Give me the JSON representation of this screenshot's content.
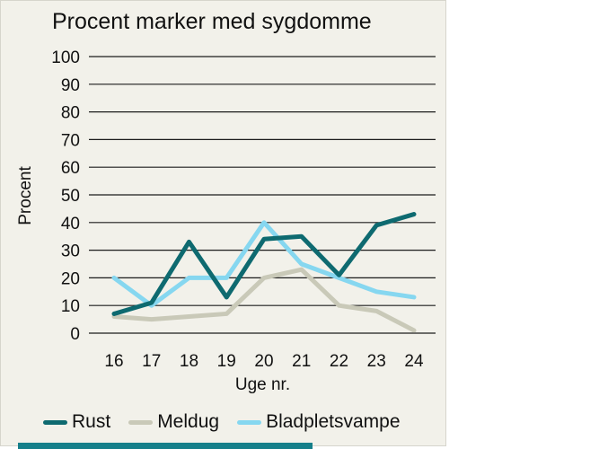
{
  "colors": {
    "panel_background": "#f2f1ea",
    "grid": "#1c1c1c",
    "accent_bar": "#157f8a",
    "rust": "#0e6a70",
    "meldug": "#c9c9b8",
    "bladpletsvampe": "#86d7f0"
  },
  "chart_data": {
    "type": "line",
    "title": "Procent marker med sygdomme",
    "xlabel": "Uge nr.",
    "ylabel": "Procent",
    "x": [
      16,
      17,
      18,
      19,
      20,
      21,
      22,
      23,
      24
    ],
    "series": [
      {
        "name": "Rust",
        "color": "#0e6a70",
        "values": [
          7,
          11,
          33,
          13,
          34,
          35,
          21,
          39,
          43
        ]
      },
      {
        "name": "Meldug",
        "color": "#c9c9b8",
        "values": [
          6,
          5,
          6,
          7,
          20,
          23,
          10,
          8,
          1
        ]
      },
      {
        "name": "Bladpletsvampe",
        "color": "#86d7f0",
        "values": [
          20,
          10,
          20,
          20,
          40,
          25,
          20,
          15,
          13
        ]
      }
    ],
    "ylim": [
      0,
      100
    ],
    "ytick_step": 10,
    "grid": true,
    "legend_position": "bottom"
  }
}
